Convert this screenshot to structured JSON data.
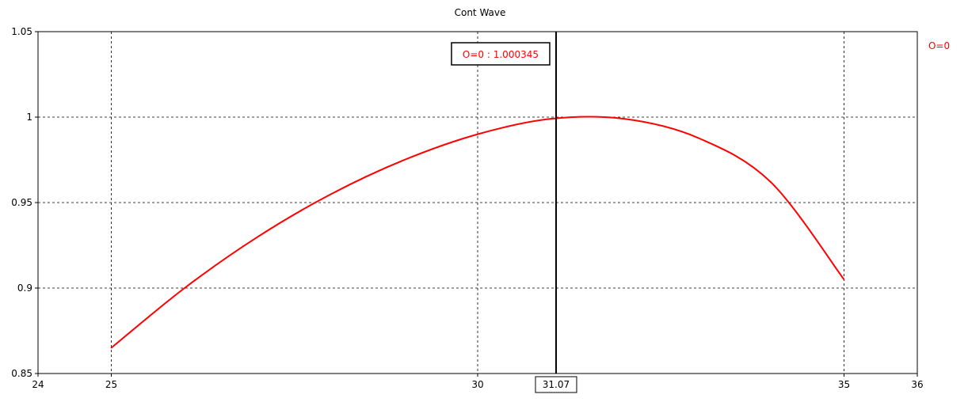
{
  "chart_data": {
    "type": "line",
    "title": "Cont Wave",
    "xlabel": "",
    "ylabel": "",
    "xlim": [
      24,
      36
    ],
    "ylim": [
      0.85,
      1.05
    ],
    "x_ticks": [
      "24",
      "25",
      "30",
      "35",
      "36"
    ],
    "y_ticks": [
      "0.85",
      "0.9",
      "0.95",
      "1",
      "1.05"
    ],
    "grid": true,
    "legend_position": "top-right",
    "series": [
      {
        "name": "O=0",
        "color": "#ff0000",
        "x": [
          25,
          26,
          27,
          28,
          29,
          30,
          31,
          32,
          33,
          34,
          35
        ],
        "y": [
          0.865,
          0.9,
          0.93,
          0.955,
          0.975,
          0.99,
          0.999,
          0.999,
          0.988,
          0.962,
          0.905
        ]
      }
    ],
    "cursor": {
      "x": 31.07,
      "x_label": "31.07",
      "readout": "O=0 : 1.000345",
      "readout_color": "#ff0000",
      "line_color": "#000000"
    }
  }
}
